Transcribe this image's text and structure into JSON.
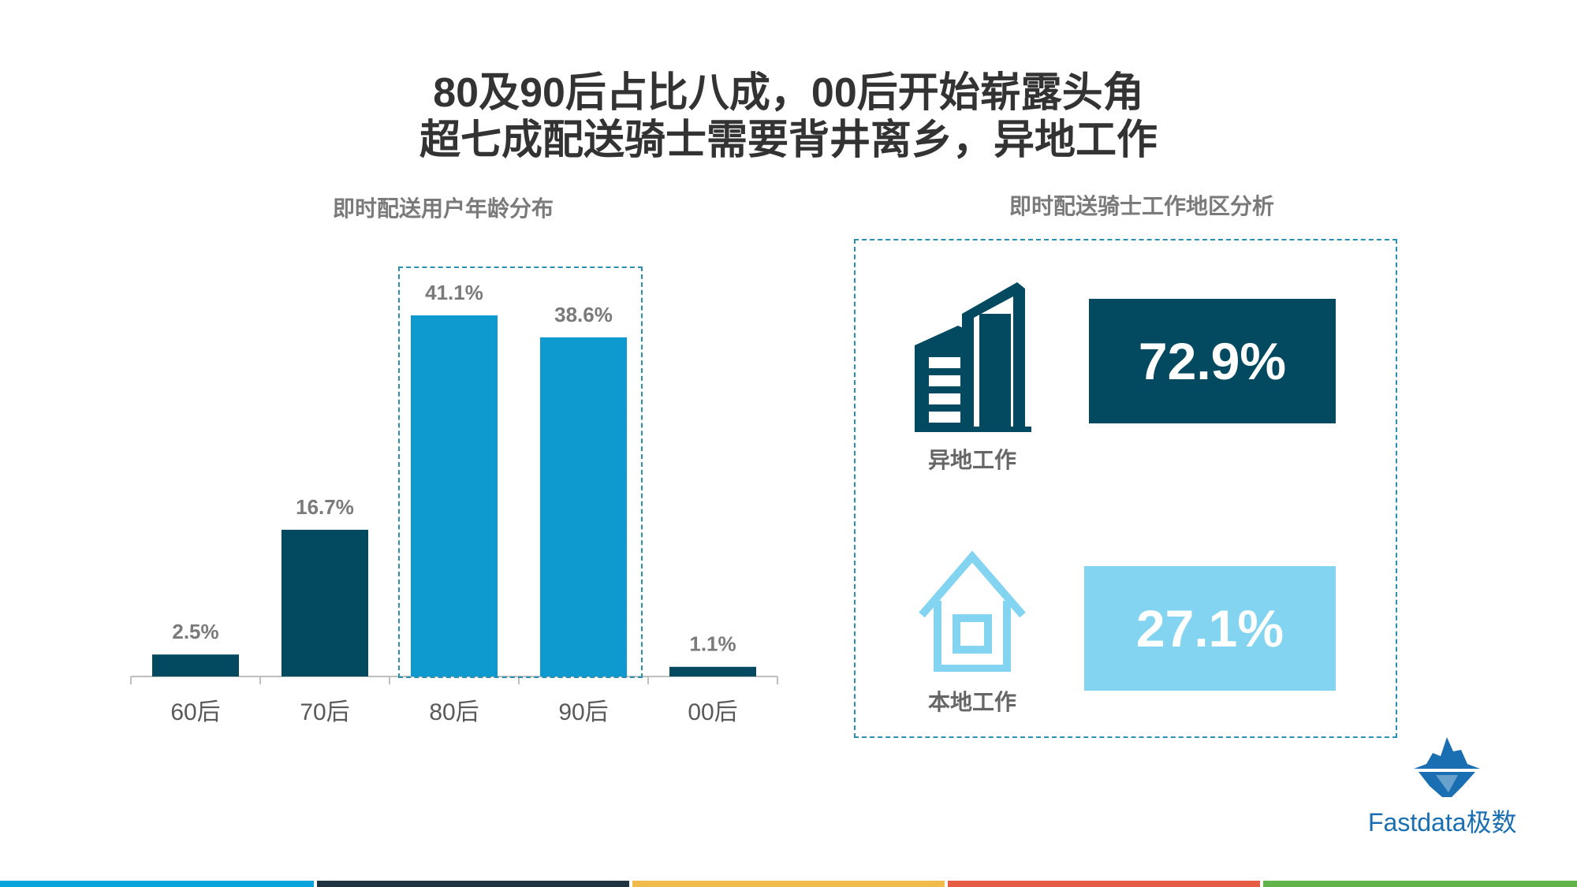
{
  "header": {
    "title_line1": "80及90后占比八成，00后开始崭露头角",
    "title_line2": "超七成配送骑士需要背井离乡，异地工作"
  },
  "left_panel": {
    "title": "即时配送用户年龄分布"
  },
  "right_panel": {
    "title": "即时配送骑士工作地区分析",
    "items": [
      {
        "label": "异地工作",
        "value": "72.9%",
        "icon": "office-building-icon",
        "color": "#034a61"
      },
      {
        "label": "本地工作",
        "value": "27.1%",
        "icon": "house-icon",
        "color": "#82d4f0"
      }
    ]
  },
  "brand": {
    "name": "Fastdata极数",
    "icon": "iceberg-logo-icon"
  },
  "colors": {
    "dark": "#034a61",
    "bright": "#0e99cf",
    "light": "#82d4f0"
  },
  "footer_stripes": [
    "#0aa4dd",
    "#1f3440",
    "#f1bb4b",
    "#e65c45",
    "#62b34a"
  ],
  "chart_data": {
    "type": "bar",
    "categories": [
      "60后",
      "70后",
      "80后",
      "90后",
      "00后"
    ],
    "values": [
      2.5,
      16.7,
      41.1,
      38.6,
      1.1
    ],
    "value_labels": [
      "2.5%",
      "16.7%",
      "41.1%",
      "38.6%",
      "1.1%"
    ],
    "highlighted": [
      false,
      false,
      true,
      true,
      false
    ],
    "ylim": [
      0,
      41.1
    ],
    "title": "即时配送用户年龄分布",
    "xlabel": "",
    "ylabel": "",
    "grid": false
  }
}
